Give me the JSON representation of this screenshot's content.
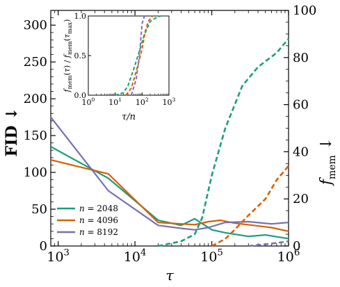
{
  "chart_data": [
    {
      "type": "line",
      "xlabel": "τ",
      "ylabel_left": "FID ↓",
      "ylabel_right": "f_mem ↓",
      "x_scale": "log",
      "xlim": [
        800,
        1000000
      ],
      "ylim_left": [
        0,
        320
      ],
      "ylim_right": [
        0,
        100
      ],
      "xticks": [
        {
          "value": 1000,
          "base": "10",
          "exp": "3"
        },
        {
          "value": 10000,
          "base": "10",
          "exp": "4"
        },
        {
          "value": 100000,
          "base": "10",
          "exp": "5"
        },
        {
          "value": 1000000,
          "base": "10",
          "exp": "6"
        }
      ],
      "yticks_left": [
        "0",
        "50",
        "100",
        "150",
        "200",
        "250",
        "300"
      ],
      "yticks_right": [
        "0",
        "20",
        "40",
        "60",
        "80",
        "100"
      ],
      "legend_location": "lower-left",
      "series": [
        {
          "name": "n = 2048",
          "label_n": "n",
          "label_val": "2048",
          "color": "#1b9e77",
          "axis": "left",
          "style": "solid",
          "x": [
            800,
            4500,
            20000,
            40000,
            60000,
            100000,
            150000,
            300000,
            500000,
            1000000
          ],
          "y": [
            135,
            92,
            35,
            28,
            37,
            22,
            18,
            13,
            15,
            10
          ]
        },
        {
          "name": "n = 4096",
          "label_n": "n",
          "label_val": "4096",
          "color": "#d95f02",
          "axis": "left",
          "style": "solid",
          "x": [
            800,
            4500,
            20000,
            40000,
            60000,
            90000,
            130000,
            200000,
            350000,
            600000,
            1000000
          ],
          "y": [
            117,
            98,
            32,
            30,
            29,
            33,
            35,
            31,
            28,
            25,
            20
          ]
        },
        {
          "name": "n = 8192",
          "label_n": "n",
          "label_val": "8192",
          "color": "#7570b3",
          "axis": "left",
          "style": "solid",
          "x": [
            800,
            4500,
            20000,
            40000,
            60000,
            90000,
            150000,
            300000,
            600000,
            1000000
          ],
          "y": [
            175,
            75,
            28,
            24,
            22,
            25,
            32,
            33,
            30,
            32
          ]
        },
        {
          "name": "f_mem n = 2048",
          "color": "#1b9e77",
          "axis": "right",
          "style": "dashed",
          "x": [
            20000,
            40000,
            60000,
            75000,
            100000,
            150000,
            250000,
            400000,
            700000,
            1000000
          ],
          "y": [
            0,
            2,
            5,
            12,
            30,
            50,
            68,
            76,
            82,
            88
          ]
        },
        {
          "name": "f_mem n = 4096",
          "color": "#d95f02",
          "axis": "right",
          "style": "dashed",
          "x": [
            100000,
            150000,
            200000,
            300000,
            500000,
            700000,
            1000000
          ],
          "y": [
            0,
            3,
            7,
            13,
            20,
            28,
            34
          ]
        },
        {
          "name": "f_mem n = 8192",
          "color": "#7570b3",
          "axis": "right",
          "style": "dashed",
          "x": [
            300000,
            600000,
            1000000
          ],
          "y": [
            0,
            1,
            2
          ]
        }
      ]
    },
    {
      "type": "line",
      "inset": true,
      "xlabel": "τ/n",
      "ylabel": "f_mem(τ) / f_mem(τ_max)",
      "x_scale": "log",
      "xlim": [
        1,
        1000
      ],
      "ylim": [
        0,
        1
      ],
      "xticks": [
        {
          "value": 1,
          "base": "10",
          "exp": "0"
        },
        {
          "value": 10,
          "base": "10",
          "exp": "1"
        },
        {
          "value": 100,
          "base": "10",
          "exp": "2"
        },
        {
          "value": 1000,
          "base": "10",
          "exp": "3"
        }
      ],
      "yticks": [
        "0.0",
        "0.5",
        "1.0"
      ],
      "series": [
        {
          "color": "#1b9e77",
          "style": "dashed",
          "x": [
            10,
            20,
            30,
            50,
            80,
            120,
            200,
            300,
            490
          ],
          "y": [
            0,
            0.03,
            0.12,
            0.34,
            0.56,
            0.76,
            0.93,
            0.97,
            1.0
          ]
        },
        {
          "color": "#d95f02",
          "style": "dashed",
          "x": [
            25,
            40,
            50,
            70,
            100,
            130,
            170,
            245
          ],
          "y": [
            0,
            0.09,
            0.2,
            0.38,
            0.58,
            0.8,
            0.93,
            1.0
          ]
        },
        {
          "color": "#7570b3",
          "style": "dashed",
          "x": [
            40,
            60,
            80,
            100,
            122
          ],
          "y": [
            0,
            0.2,
            0.5,
            0.9,
            1.0
          ]
        }
      ]
    }
  ]
}
